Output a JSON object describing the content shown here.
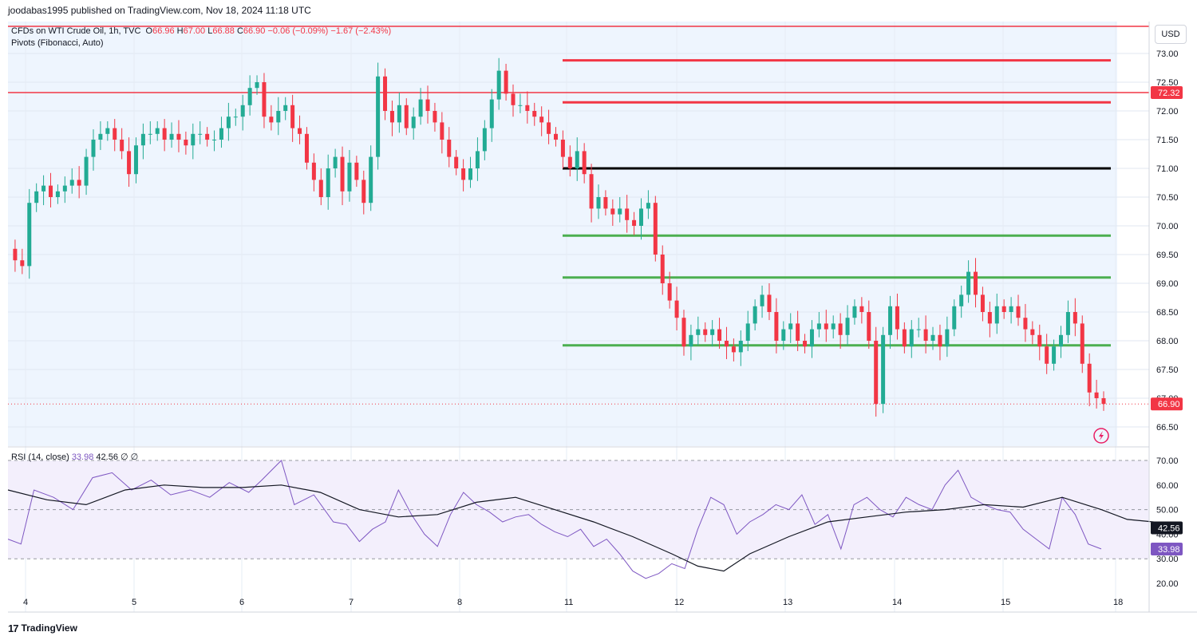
{
  "header": {
    "publisher_line": "joodabas1995 published on TradingView.com, Nov 18, 2024 11:18 UTC"
  },
  "legend": {
    "symbol": "CFDs on WTI Crude Oil, 1h, TVC",
    "o_label": "O",
    "o": "66.96",
    "h_label": "H",
    "h": "67.00",
    "l_label": "L",
    "l": "66.88",
    "c_label": "C",
    "c": "66.90",
    "change": "−0.06 (−0.09%)",
    "change2": "−1.67 (−2.43%)",
    "pivots_label": "Pivots (Fibonacci, Auto)",
    "rsi_label": "RSI (14, close)",
    "rsi_value": "33.98",
    "rsi_ma": "42.56",
    "rsi_extra": "∅  ∅"
  },
  "currency_button": "USD",
  "footer": {
    "brand": "TradingView",
    "logo_glyph": "17"
  },
  "colors": {
    "up": "#22ab94",
    "down": "#f23645",
    "pivot_r": "#f23645",
    "pivot_p": "#000000",
    "pivot_s": "#4caf50",
    "rsi": "#7e57c2",
    "rsi_ma": "#131722",
    "bg_price": "#eef5fe",
    "bg_rsi": "#f3effc"
  },
  "chart_data": [
    {
      "type": "candlestick",
      "title": "CFDs on WTI Crude Oil, 1h, TVC",
      "price_axis": {
        "ticks": [
          "73.00",
          "72.50",
          "72.00",
          "71.50",
          "71.00",
          "70.50",
          "70.00",
          "69.50",
          "69.00",
          "68.50",
          "68.00",
          "67.50",
          "67.00",
          "66.50"
        ],
        "range": [
          66.2,
          73.3
        ]
      },
      "time_axis": {
        "ticks": [
          "4",
          "5",
          "6",
          "7",
          "8",
          "11",
          "12",
          "13",
          "14",
          "15",
          "18"
        ]
      },
      "horizontal_lines": [
        {
          "name": "resistance",
          "value": 72.32,
          "label": "72.32"
        }
      ],
      "last_price": {
        "value": 66.9,
        "label": "66.90"
      },
      "pivots": [
        {
          "name": "R3",
          "value": 72.88
        },
        {
          "name": "R2",
          "value": 72.15
        },
        {
          "name": "P",
          "value": 71.0
        },
        {
          "name": "S1",
          "value": 69.83
        },
        {
          "name": "S2",
          "value": 69.1
        },
        {
          "name": "S3",
          "value": 67.92
        }
      ],
      "close_path": [
        [
          0,
          69.6
        ],
        [
          1,
          69.4
        ],
        [
          2,
          69.3
        ],
        [
          3,
          70.4
        ],
        [
          4,
          70.6
        ],
        [
          5,
          70.7
        ],
        [
          6,
          70.5
        ],
        [
          7,
          70.6
        ],
        [
          8,
          70.7
        ],
        [
          9,
          70.8
        ],
        [
          10,
          70.7
        ],
        [
          11,
          71.2
        ],
        [
          12,
          71.5
        ],
        [
          13,
          71.6
        ],
        [
          14,
          71.7
        ],
        [
          15,
          71.5
        ],
        [
          16,
          71.3
        ],
        [
          17,
          70.9
        ],
        [
          18,
          71.4
        ],
        [
          19,
          71.6
        ],
        [
          20,
          71.6
        ],
        [
          21,
          71.7
        ],
        [
          22,
          71.5
        ],
        [
          23,
          71.6
        ],
        [
          24,
          71.5
        ],
        [
          25,
          71.4
        ],
        [
          26,
          71.6
        ],
        [
          27,
          71.6
        ],
        [
          28,
          71.5
        ],
        [
          29,
          71.5
        ],
        [
          30,
          71.7
        ],
        [
          31,
          71.9
        ],
        [
          32,
          71.9
        ],
        [
          33,
          72.1
        ],
        [
          34,
          72.4
        ],
        [
          35,
          72.5
        ],
        [
          36,
          71.9
        ],
        [
          37,
          71.8
        ],
        [
          38,
          72.0
        ],
        [
          39,
          72.1
        ],
        [
          40,
          71.7
        ],
        [
          41,
          71.6
        ],
        [
          42,
          71.1
        ],
        [
          43,
          70.8
        ],
        [
          44,
          70.5
        ],
        [
          45,
          71.0
        ],
        [
          46,
          71.2
        ],
        [
          47,
          70.6
        ],
        [
          48,
          71.1
        ],
        [
          49,
          70.8
        ],
        [
          50,
          70.4
        ],
        [
          51,
          71.2
        ],
        [
          52,
          72.6
        ],
        [
          53,
          72.0
        ],
        [
          54,
          71.8
        ],
        [
          55,
          72.1
        ],
        [
          56,
          71.7
        ],
        [
          57,
          71.9
        ],
        [
          58,
          72.2
        ],
        [
          59,
          72.0
        ],
        [
          60,
          71.8
        ],
        [
          61,
          71.5
        ],
        [
          62,
          71.2
        ],
        [
          63,
          71.0
        ],
        [
          64,
          70.8
        ],
        [
          65,
          71.0
        ],
        [
          66,
          71.3
        ],
        [
          67,
          71.7
        ],
        [
          68,
          72.2
        ],
        [
          69,
          72.7
        ],
        [
          70,
          72.3
        ],
        [
          71,
          72.1
        ],
        [
          72,
          72.1
        ],
        [
          73,
          72.0
        ],
        [
          74,
          71.9
        ],
        [
          75,
          71.8
        ],
        [
          76,
          71.6
        ],
        [
          77,
          71.5
        ],
        [
          78,
          71.2
        ],
        [
          79,
          71.0
        ],
        [
          80,
          71.3
        ],
        [
          81,
          70.9
        ],
        [
          82,
          70.3
        ],
        [
          83,
          70.5
        ],
        [
          84,
          70.3
        ],
        [
          85,
          70.2
        ],
        [
          86,
          70.3
        ],
        [
          87,
          70.1
        ],
        [
          88,
          70.0
        ],
        [
          89,
          70.3
        ],
        [
          90,
          70.4
        ],
        [
          91,
          69.5
        ],
        [
          92,
          69.0
        ],
        [
          93,
          68.7
        ],
        [
          94,
          68.4
        ],
        [
          95,
          67.9
        ],
        [
          96,
          68.1
        ],
        [
          97,
          68.2
        ],
        [
          98,
          68.1
        ],
        [
          99,
          68.2
        ],
        [
          100,
          68.0
        ],
        [
          101,
          67.9
        ],
        [
          102,
          67.8
        ],
        [
          103,
          68.0
        ],
        [
          104,
          68.3
        ],
        [
          105,
          68.6
        ],
        [
          106,
          68.8
        ],
        [
          107,
          68.5
        ],
        [
          108,
          68.0
        ],
        [
          109,
          68.2
        ],
        [
          110,
          68.3
        ],
        [
          111,
          68.0
        ],
        [
          112,
          67.9
        ],
        [
          113,
          68.2
        ],
        [
          114,
          68.3
        ],
        [
          115,
          68.2
        ],
        [
          116,
          68.3
        ],
        [
          117,
          68.1
        ],
        [
          118,
          68.4
        ],
        [
          119,
          68.6
        ],
        [
          120,
          68.5
        ],
        [
          121,
          68.0
        ],
        [
          122,
          66.9
        ],
        [
          123,
          68.1
        ],
        [
          124,
          68.6
        ],
        [
          125,
          68.2
        ],
        [
          126,
          67.9
        ],
        [
          127,
          68.2
        ],
        [
          128,
          68.2
        ],
        [
          129,
          68.0
        ],
        [
          130,
          68.1
        ],
        [
          131,
          67.9
        ],
        [
          132,
          68.2
        ],
        [
          133,
          68.6
        ],
        [
          134,
          68.8
        ],
        [
          135,
          69.2
        ],
        [
          136,
          68.8
        ],
        [
          137,
          68.5
        ],
        [
          138,
          68.3
        ],
        [
          139,
          68.6
        ],
        [
          140,
          68.5
        ],
        [
          141,
          68.6
        ],
        [
          142,
          68.4
        ],
        [
          143,
          68.2
        ],
        [
          144,
          68.1
        ],
        [
          145,
          67.9
        ],
        [
          146,
          67.6
        ],
        [
          147,
          67.9
        ],
        [
          148,
          68.1
        ],
        [
          149,
          68.5
        ],
        [
          150,
          68.3
        ],
        [
          151,
          67.6
        ],
        [
          152,
          67.1
        ],
        [
          153,
          67.0
        ],
        [
          154,
          66.9
        ]
      ]
    },
    {
      "type": "line",
      "title": "RSI (14, close)",
      "y_axis": {
        "ticks": [
          "70.00",
          "60.00",
          "50.00",
          "40.00",
          "30.00",
          "20.00"
        ],
        "range": [
          17,
          72
        ]
      },
      "bands": {
        "upper": 70,
        "middle": 50,
        "lower": 30
      },
      "series": [
        {
          "name": "RSI",
          "last": 33.98,
          "points": [
            [
              0,
              38
            ],
            [
              4,
              36
            ],
            [
              8,
              58
            ],
            [
              14,
              55
            ],
            [
              20,
              50
            ],
            [
              26,
              63
            ],
            [
              32,
              65
            ],
            [
              38,
              58
            ],
            [
              44,
              62
            ],
            [
              50,
              56
            ],
            [
              56,
              58
            ],
            [
              62,
              55
            ],
            [
              68,
              61
            ],
            [
              74,
              57
            ],
            [
              78,
              62
            ],
            [
              84,
              70
            ],
            [
              88,
              52
            ],
            [
              94,
              56
            ],
            [
              100,
              45
            ],
            [
              104,
              44
            ],
            [
              108,
              37
            ],
            [
              112,
              42
            ],
            [
              116,
              45
            ],
            [
              120,
              58
            ],
            [
              124,
              48
            ],
            [
              128,
              40
            ],
            [
              132,
              35
            ],
            [
              136,
              48
            ],
            [
              140,
              57
            ],
            [
              144,
              52
            ],
            [
              148,
              49
            ],
            [
              152,
              45
            ],
            [
              156,
              47
            ],
            [
              160,
              48
            ],
            [
              164,
              44
            ],
            [
              168,
              41
            ],
            [
              172,
              39
            ],
            [
              176,
              42
            ],
            [
              180,
              35
            ],
            [
              184,
              38
            ],
            [
              188,
              32
            ],
            [
              192,
              25
            ],
            [
              196,
              22
            ],
            [
              200,
              24
            ],
            [
              204,
              28
            ],
            [
              208,
              26
            ],
            [
              212,
              42
            ],
            [
              216,
              55
            ],
            [
              220,
              52
            ],
            [
              224,
              40
            ],
            [
              228,
              45
            ],
            [
              232,
              48
            ],
            [
              236,
              52
            ],
            [
              240,
              50
            ],
            [
              244,
              56
            ],
            [
              248,
              44
            ],
            [
              252,
              48
            ],
            [
              256,
              34
            ],
            [
              260,
              52
            ],
            [
              264,
              55
            ],
            [
              268,
              50
            ],
            [
              272,
              47
            ],
            [
              276,
              55
            ],
            [
              280,
              52
            ],
            [
              284,
              50
            ],
            [
              288,
              60
            ],
            [
              292,
              66
            ],
            [
              296,
              55
            ],
            [
              300,
              52
            ],
            [
              304,
              50
            ],
            [
              308,
              49
            ],
            [
              312,
              42
            ],
            [
              316,
              38
            ],
            [
              320,
              34
            ],
            [
              324,
              55
            ],
            [
              328,
              48
            ],
            [
              332,
              36
            ],
            [
              336,
              34
            ]
          ]
        },
        {
          "name": "RSI-based MA",
          "last": 42.56,
          "points": [
            [
              0,
              58
            ],
            [
              12,
              54
            ],
            [
              24,
              52
            ],
            [
              36,
              58
            ],
            [
              48,
              60
            ],
            [
              60,
              59
            ],
            [
              72,
              59
            ],
            [
              84,
              60
            ],
            [
              96,
              57
            ],
            [
              108,
              50
            ],
            [
              120,
              47
            ],
            [
              132,
              48
            ],
            [
              144,
              53
            ],
            [
              156,
              55
            ],
            [
              168,
              50
            ],
            [
              180,
              45
            ],
            [
              192,
              39
            ],
            [
              204,
              32
            ],
            [
              212,
              27
            ],
            [
              220,
              25
            ],
            [
              228,
              32
            ],
            [
              240,
              39
            ],
            [
              252,
              45
            ],
            [
              264,
              47
            ],
            [
              276,
              49
            ],
            [
              288,
              50
            ],
            [
              300,
              52
            ],
            [
              312,
              51
            ],
            [
              324,
              55
            ],
            [
              336,
              50
            ],
            [
              344,
              46
            ],
            [
              352,
              45
            ],
            [
              360,
              43
            ]
          ]
        }
      ]
    }
  ]
}
